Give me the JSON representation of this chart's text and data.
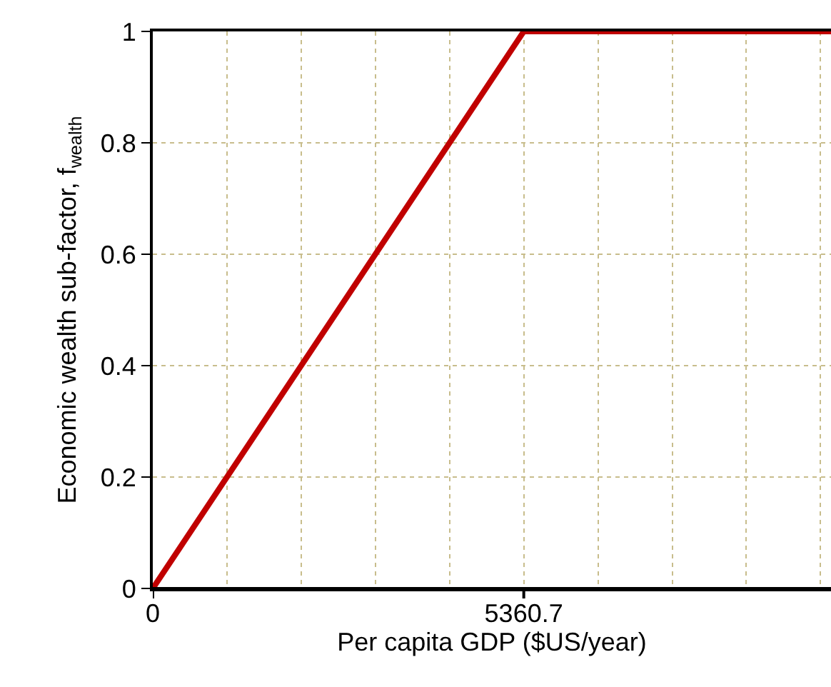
{
  "chart_data": {
    "type": "line",
    "xlabel": "Per capita GDP ($US/year)",
    "ylabel": "Economic wealth sub-factor, f$_{wealth}$",
    "x": [
      0,
      5360.7,
      9800
    ],
    "series": [
      {
        "color": "#c00000",
        "values": [
          0,
          1,
          1
        ]
      }
    ],
    "xlim": [
      0,
      9800
    ],
    "xticks": [
      0,
      {
        "value": 1072.14,
        "label": null
      },
      {
        "value": 2144.28,
        "label": null
      },
      {
        "value": 3216.42,
        "label": null
      },
      {
        "value": 4288.56,
        "label": null
      },
      5360.7,
      {
        "value": 6432.84,
        "label": null
      },
      {
        "value": 7504.98,
        "label": null
      },
      {
        "value": 8577.12,
        "label": null
      },
      {
        "value": 9649.26,
        "label": null
      }
    ],
    "ylim": [
      0,
      1
    ],
    "yticks": [
      0,
      0.2,
      0.4,
      0.6,
      0.8,
      1
    ],
    "grid": true,
    "legend": false,
    "marker": "none",
    "line_style": "solid"
  }
}
